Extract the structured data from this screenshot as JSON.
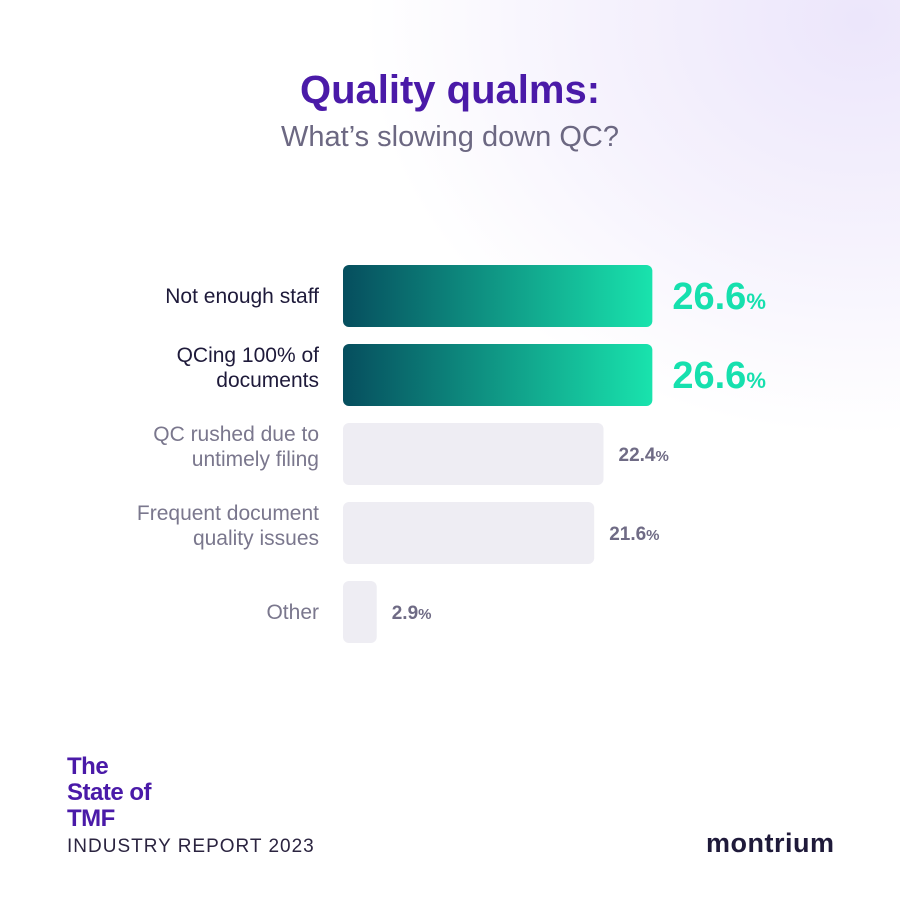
{
  "chart_data": {
    "type": "bar",
    "orientation": "horizontal",
    "title": "Quality qualms:",
    "subtitle": "What’s slowing down QC?",
    "categories": [
      [
        "Not enough staff"
      ],
      [
        "QCing 100% of",
        "documents"
      ],
      [
        "QC rushed due to",
        "untimely filing"
      ],
      [
        "Frequent document",
        "quality issues"
      ],
      [
        "Other"
      ]
    ],
    "values": [
      26.6,
      26.6,
      22.4,
      21.6,
      2.9
    ],
    "value_labels": [
      "26.6",
      "26.6",
      "22.4",
      "21.6",
      "2.9"
    ],
    "unit": "%",
    "highlighted": [
      true,
      true,
      false,
      false,
      false
    ],
    "xlim": [
      0,
      27
    ],
    "grid": false,
    "colors": {
      "highlight_start": "#064e5e",
      "highlight_end": "#19e3ad",
      "highlight_text": "#16e0ae",
      "muted_bar": "#eeedf3",
      "muted_text": "#6f6b85",
      "highlight_label": "#1e1a3a",
      "muted_label": "#7a778d"
    }
  },
  "footer": {
    "brand_lines": [
      "The",
      "State of",
      "TMF"
    ],
    "report": "INDUSTRY REPORT 2023",
    "logo": "montrium"
  }
}
